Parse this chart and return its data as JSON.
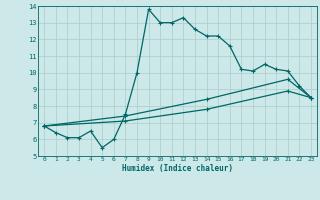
{
  "xlabel": "Humidex (Indice chaleur)",
  "bg_color": "#cce8e8",
  "grid_color": "#aacccc",
  "line_color": "#006666",
  "xlim": [
    0,
    23
  ],
  "ylim": [
    5,
    14
  ],
  "yticks": [
    5,
    6,
    7,
    8,
    9,
    10,
    11,
    12,
    13,
    14
  ],
  "xticks": [
    0,
    1,
    2,
    3,
    4,
    5,
    6,
    7,
    8,
    9,
    10,
    11,
    12,
    13,
    14,
    15,
    16,
    17,
    18,
    19,
    20,
    21,
    22,
    23
  ],
  "line1_x": [
    0,
    1,
    2,
    3,
    4,
    5,
    6,
    7,
    8,
    9,
    10,
    11,
    12,
    13,
    14,
    15,
    16,
    17,
    18,
    19,
    20,
    21,
    22,
    23
  ],
  "line1_y": [
    6.8,
    6.4,
    6.1,
    6.1,
    6.5,
    5.5,
    6.0,
    7.5,
    10.0,
    13.8,
    13.0,
    13.0,
    13.3,
    12.6,
    12.2,
    12.2,
    11.6,
    10.2,
    10.1,
    10.5,
    10.2,
    10.1,
    9.2,
    8.5
  ],
  "line2_x": [
    0,
    7,
    14,
    21,
    23
  ],
  "line2_y": [
    6.8,
    7.4,
    8.4,
    9.6,
    8.5
  ],
  "line3_x": [
    0,
    7,
    14,
    21,
    23
  ],
  "line3_y": [
    6.8,
    7.1,
    7.8,
    8.9,
    8.5
  ],
  "markersize": 3,
  "linewidth": 0.9
}
